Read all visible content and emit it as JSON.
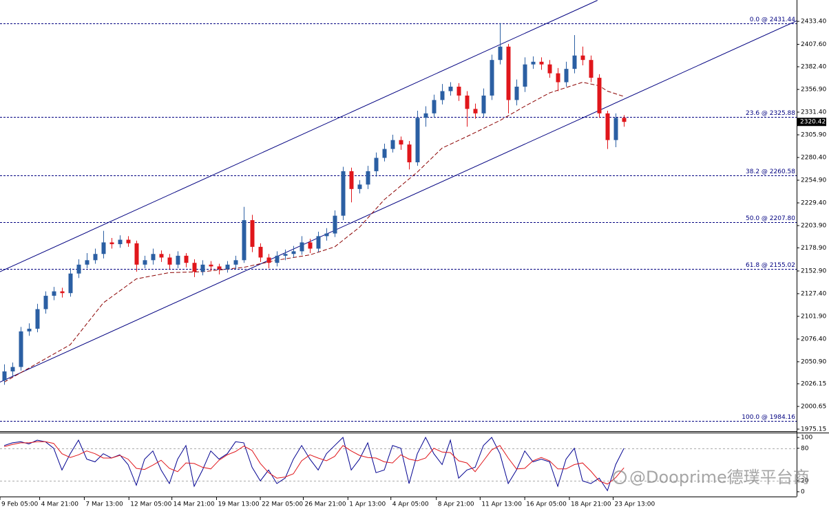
{
  "chart_data": [
    {
      "type": "candlestick",
      "open": [
        2030,
        2040,
        2045,
        2085,
        2088,
        2110,
        2125,
        2130,
        2128,
        2150,
        2160,
        2165,
        2172,
        2185,
        2183,
        2188,
        2184,
        2160,
        2165,
        2172,
        2168,
        2160,
        2170,
        2162,
        2152,
        2160,
        2158,
        2155,
        2160,
        2165,
        2210,
        2180,
        2168,
        2162,
        2170,
        2172,
        2175,
        2185,
        2178,
        2192,
        2195,
        2215,
        2265,
        2245,
        2250,
        2265,
        2280,
        2290,
        2300,
        2295,
        2275,
        2325,
        2330,
        2345,
        2355,
        2360,
        2350,
        2335,
        2330,
        2350,
        2390,
        2405,
        2345,
        2360,
        2385,
        2388,
        2385,
        2375,
        2365,
        2380,
        2395,
        2390,
        2370,
        2330,
        2300,
        2325
      ],
      "high": [
        2048,
        2050,
        2090,
        2094,
        2116,
        2130,
        2135,
        2134,
        2156,
        2166,
        2173,
        2178,
        2198,
        2190,
        2193,
        2192,
        2187,
        2170,
        2178,
        2176,
        2172,
        2175,
        2173,
        2166,
        2165,
        2164,
        2161,
        2164,
        2170,
        2225,
        2216,
        2184,
        2172,
        2175,
        2177,
        2181,
        2192,
        2189,
        2197,
        2201,
        2221,
        2270,
        2269,
        2255,
        2271,
        2286,
        2296,
        2306,
        2304,
        2299,
        2333,
        2338,
        2351,
        2363,
        2365,
        2364,
        2355,
        2341,
        2358,
        2396,
        2431.44,
        2408,
        2368,
        2393,
        2394,
        2393,
        2390,
        2381,
        2388,
        2418,
        2405,
        2395,
        2374,
        2333,
        2330,
        2328
      ],
      "low": [
        2025,
        2035,
        2041,
        2080,
        2084,
        2105,
        2120,
        2123,
        2124,
        2145,
        2156,
        2161,
        2167,
        2178,
        2179,
        2180,
        2152,
        2156,
        2160,
        2163,
        2155,
        2156,
        2157,
        2146,
        2148,
        2153,
        2149,
        2151,
        2155,
        2162,
        2174,
        2163,
        2156,
        2158,
        2165,
        2168,
        2171,
        2173,
        2174,
        2187,
        2191,
        2210,
        2230,
        2240,
        2245,
        2259,
        2276,
        2286,
        2289,
        2267,
        2271,
        2315,
        2325,
        2340,
        2350,
        2344,
        2315,
        2324,
        2326,
        2345,
        2385,
        2330,
        2339,
        2354,
        2380,
        2379,
        2370,
        2355,
        2360,
        2375,
        2384,
        2365,
        2325,
        2290,
        2292,
        2315
      ],
      "close": [
        2040,
        2045,
        2085,
        2088,
        2110,
        2125,
        2130,
        2128,
        2150,
        2160,
        2165,
        2172,
        2185,
        2183,
        2188,
        2184,
        2160,
        2165,
        2172,
        2168,
        2160,
        2170,
        2162,
        2152,
        2160,
        2158,
        2155,
        2160,
        2165,
        2210,
        2180,
        2168,
        2162,
        2170,
        2172,
        2175,
        2185,
        2178,
        2192,
        2195,
        2215,
        2265,
        2245,
        2250,
        2265,
        2280,
        2290,
        2300,
        2295,
        2275,
        2325,
        2330,
        2345,
        2355,
        2360,
        2350,
        2335,
        2330,
        2350,
        2390,
        2405,
        2345,
        2360,
        2385,
        2388,
        2385,
        2375,
        2365,
        2380,
        2395,
        2390,
        2370,
        2330,
        2300,
        2325,
        2320.42
      ],
      "up_color": "#2b5fa3",
      "down_color": "#e0161b",
      "xlim": [
        -0.5,
        95.9
      ],
      "xticks": [
        {
          "value": -0.5,
          "label": "9 Feb 05:00"
        },
        {
          "value": 4.3,
          "label": "4 Mar 21:00"
        },
        {
          "value": 9.7,
          "label": "7 Mar 13:00"
        },
        {
          "value": 15.1,
          "label": "12 Mar 05:00"
        },
        {
          "value": 20.3,
          "label": "14 Mar 21:00"
        },
        {
          "value": 25.7,
          "label": "19 Mar 13:00"
        },
        {
          "value": 31,
          "label": "22 Mar 05:00"
        },
        {
          "value": 36.2,
          "label": "26 Mar 21:00"
        },
        {
          "value": 41.6,
          "label": "1 Apr 13:00"
        },
        {
          "value": 46.8,
          "label": "4 Apr 05:00"
        },
        {
          "value": 52.3,
          "label": "8 Apr 21:00"
        },
        {
          "value": 57.6,
          "label": "11 Apr 13:00"
        },
        {
          "value": 63,
          "label": "16 Apr 05:00"
        },
        {
          "value": 68.4,
          "label": "18 Apr 21:00"
        },
        {
          "value": 73.7,
          "label": "23 Apr 13:00"
        }
      ],
      "ylim": [
        1972.8,
        2457.4
      ],
      "yticks": [
        {
          "value": 2433.4,
          "label": "2433.40"
        },
        {
          "value": 2407.6,
          "label": "2407.60"
        },
        {
          "value": 2382.4,
          "label": "2382.40"
        },
        {
          "value": 2356.9,
          "label": "2356.90"
        },
        {
          "value": 2331.4,
          "label": "2331.40"
        },
        {
          "value": 2305.9,
          "label": "2305.90"
        },
        {
          "value": 2280.4,
          "label": "2280.40"
        },
        {
          "value": 2254.9,
          "label": "2254.90"
        },
        {
          "value": 2229.4,
          "label": "2229.40"
        },
        {
          "value": 2203.9,
          "label": "2203.90"
        },
        {
          "value": 2178.9,
          "label": "2178.90"
        },
        {
          "value": 2152.9,
          "label": "2152.90"
        },
        {
          "value": 2127.4,
          "label": "2127.40"
        },
        {
          "value": 2101.9,
          "label": "2101.90"
        },
        {
          "value": 2076.4,
          "label": "2076.40"
        },
        {
          "value": 2050.9,
          "label": "2050.90"
        },
        {
          "value": 2026.15,
          "label": "2026.15"
        },
        {
          "value": 2000.65,
          "label": "2000.65"
        },
        {
          "value": 1975.15,
          "label": "1975.15"
        }
      ],
      "moving_average": {
        "color": "#8b0000",
        "x": [
          0,
          8,
          12,
          16,
          20,
          24,
          29,
          33,
          37,
          40,
          43,
          46,
          50,
          53,
          56,
          60,
          63,
          66,
          70,
          72,
          73,
          75
        ],
        "values": [
          2028,
          2070,
          2117,
          2144,
          2151,
          2152,
          2157,
          2165,
          2171,
          2180,
          2202,
          2233,
          2264,
          2291,
          2304,
          2322,
          2338,
          2353,
          2365,
          2361,
          2355,
          2349
        ]
      },
      "channel_lines": [
        {
          "color": "#000080",
          "x": [
            -0.5,
            71.8
          ],
          "values": [
            2152,
            2457
          ]
        },
        {
          "color": "#000080",
          "x": [
            -0.5,
            95.9
          ],
          "values": [
            2028,
            2434
          ]
        }
      ],
      "fib_levels": [
        {
          "value": 2431.44,
          "label": "0.0 @ 2431.44"
        },
        {
          "value": 2325.88,
          "label": "23.6 @ 2325.88"
        },
        {
          "value": 2260.58,
          "label": "38.2 @ 2260.58"
        },
        {
          "value": 2207.8,
          "label": "50.0 @ 2207.80"
        },
        {
          "value": 2155.02,
          "label": "61.8 @ 2155.02"
        },
        {
          "value": 1984.16,
          "label": "100.0 @ 1984.16"
        }
      ],
      "fib_color": "#000080",
      "current_price": 2320.42,
      "watermark": "@Dooprime德璞平台商"
    },
    {
      "type": "line",
      "series": [
        {
          "color": "#000090",
          "values": [
            85,
            90,
            92,
            88,
            95,
            92,
            80,
            40,
            70,
            95,
            60,
            55,
            70,
            62,
            68,
            50,
            12,
            60,
            75,
            40,
            15,
            60,
            85,
            10,
            40,
            75,
            60,
            70,
            92,
            90,
            45,
            20,
            40,
            15,
            25,
            60,
            85,
            60,
            40,
            70,
            85,
            100,
            40,
            60,
            90,
            35,
            40,
            85,
            80,
            15,
            70,
            100,
            70,
            50,
            95,
            25,
            40,
            45,
            85,
            100,
            70,
            15,
            40,
            75,
            55,
            60,
            55,
            10,
            60,
            80,
            20,
            15,
            25,
            2,
            50,
            80
          ]
        },
        {
          "color": "#e0161b",
          "values": [
            83,
            87,
            90,
            90,
            92,
            92,
            89,
            70,
            63,
            68,
            75,
            70,
            62,
            62,
            67,
            60,
            43,
            41,
            49,
            58,
            43,
            37,
            53,
            52,
            45,
            42,
            58,
            68,
            74,
            84,
            76,
            52,
            35,
            25,
            27,
            33,
            57,
            68,
            62,
            57,
            65,
            85,
            75,
            67,
            63,
            62,
            55,
            53,
            68,
            60,
            57,
            62,
            80,
            73,
            72,
            57,
            53,
            37,
            57,
            77,
            85,
            62,
            42,
            43,
            57,
            63,
            57,
            42,
            42,
            50,
            53,
            38,
            20,
            14,
            26,
            44
          ]
        }
      ],
      "ylim": [
        -8.9,
        107.6
      ],
      "yticks": [
        100,
        80,
        20,
        0
      ],
      "levels": [
        80,
        20
      ]
    }
  ]
}
